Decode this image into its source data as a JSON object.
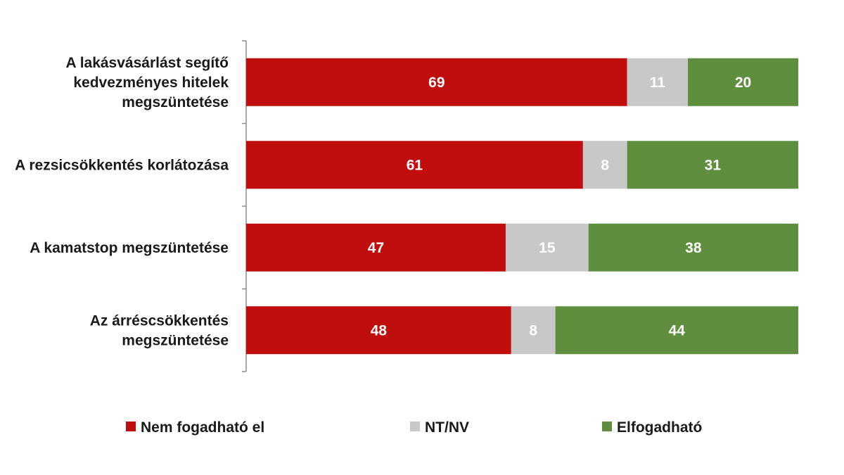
{
  "chart_data": {
    "type": "bar",
    "orientation": "horizontal",
    "stacked": true,
    "categories": [
      [
        "A lakásvásárlást segítő",
        "kedvezményes hitelek",
        "megszüntetése"
      ],
      [
        "A rezsicsökkentés korlátozása"
      ],
      [
        "A kamatstop megszüntetése"
      ],
      [
        "Az árréscsökkentés",
        "megszüntetése"
      ]
    ],
    "series": [
      {
        "name": "Nem fogadható el",
        "color": "#c00d0d",
        "values": [
          69,
          61,
          47,
          48
        ]
      },
      {
        "name": "NT/NV",
        "color": "#c8c8c8",
        "values": [
          11,
          8,
          15,
          8
        ]
      },
      {
        "name": "Elfogadható",
        "color": "#5f8f3e",
        "values": [
          20,
          31,
          38,
          44
        ]
      }
    ],
    "xlim": [
      0,
      100
    ],
    "grid": false,
    "legend_position": "bottom"
  }
}
